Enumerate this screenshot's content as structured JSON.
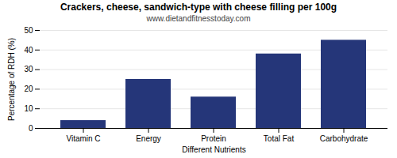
{
  "chart_data": {
    "type": "bar",
    "title": "Crackers, cheese, sandwich-type with cheese filling per 100g",
    "subtitle": "www.dietandfitnesstoday.com",
    "xlabel": "Different Nutrients",
    "ylabel": "Percentage of RDH (%)",
    "categories": [
      "Vitamin C",
      "Energy",
      "Protein",
      "Total Fat",
      "Carbohydrate"
    ],
    "values": [
      4,
      25,
      16,
      38,
      45
    ],
    "color": "#253679",
    "ylim": [
      0,
      50
    ],
    "yticks": [
      0,
      10,
      20,
      30,
      40,
      50
    ],
    "grid": true
  }
}
